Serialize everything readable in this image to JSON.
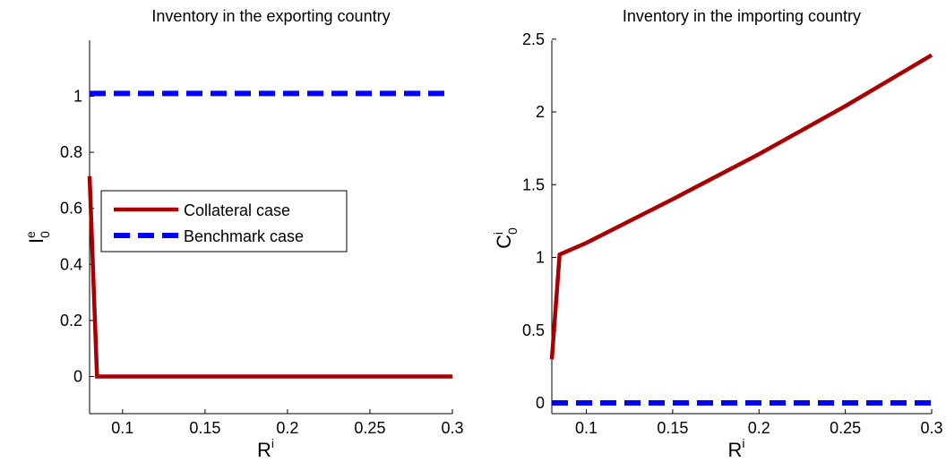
{
  "colors": {
    "collateral": "#a80000",
    "benchmark": "#0000ff",
    "axis": "#000000"
  },
  "chart_data": [
    {
      "type": "line",
      "title": "Inventory in the exporting country",
      "xlabel": "R",
      "xlabel_sup": "i",
      "ylabel": "I",
      "ylabel_sub": "0",
      "ylabel_sup": "e",
      "xlim": [
        0.08,
        0.3
      ],
      "ylim": [
        -0.1,
        1.2
      ],
      "xticks": [
        0.1,
        0.15,
        0.2,
        0.25,
        0.3
      ],
      "xtick_labels": [
        "0.1",
        "0.15",
        "0.2",
        "0.25",
        "0.3"
      ],
      "yticks": [
        0,
        0.2,
        0.4,
        0.6,
        0.8,
        1
      ],
      "ytick_labels": [
        "0",
        "0.2",
        "0.4",
        "0.6",
        "0.8",
        "1"
      ],
      "legend": {
        "placement": "middle-left",
        "entries": [
          "Collateral case",
          "Benchmark case"
        ]
      },
      "series": [
        {
          "name": "Collateral case",
          "style": "solid",
          "x": [
            0.08,
            0.0845,
            0.3
          ],
          "y": [
            0.715,
            0.0,
            0.0
          ]
        },
        {
          "name": "Benchmark case",
          "style": "dashed",
          "x": [
            0.08,
            0.3
          ],
          "y": [
            1.01,
            1.01
          ]
        }
      ]
    },
    {
      "type": "line",
      "title": "Inventory in the importing country",
      "xlabel": "R",
      "xlabel_sup": "i",
      "ylabel": "C",
      "ylabel_sub": "0",
      "ylabel_sup": "i",
      "xlim": [
        0.08,
        0.3
      ],
      "ylim": [
        -0.05,
        2.5
      ],
      "xticks": [
        0.1,
        0.15,
        0.2,
        0.25,
        0.3
      ],
      "xtick_labels": [
        "0.1",
        "0.15",
        "0.2",
        "0.25",
        "0.3"
      ],
      "yticks": [
        0,
        0.5,
        1,
        1.5,
        2,
        2.5
      ],
      "ytick_labels": [
        "0",
        "0.5",
        "1",
        "1.5",
        "2",
        "2.5"
      ],
      "series": [
        {
          "name": "Collateral case",
          "style": "solid",
          "x": [
            0.08,
            0.0845,
            0.1,
            0.15,
            0.2,
            0.25,
            0.3
          ],
          "y": [
            0.3,
            1.02,
            1.1,
            1.4,
            1.71,
            2.04,
            2.39
          ]
        },
        {
          "name": "Benchmark case",
          "style": "dashed",
          "x": [
            0.08,
            0.3
          ],
          "y": [
            0.0,
            0.0
          ]
        }
      ]
    }
  ]
}
